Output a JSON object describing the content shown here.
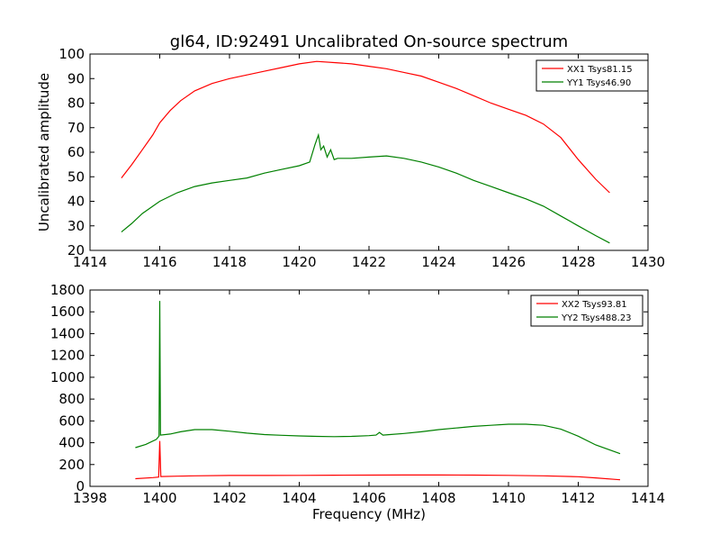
{
  "chart_data": [
    {
      "type": "line",
      "title": "gl64, ID:92491 Uncalibrated On-source spectrum",
      "xlabel": "",
      "ylabel": "Uncalibrated amplitude",
      "xlim": [
        1414,
        1430
      ],
      "ylim": [
        20,
        100
      ],
      "xticks": [
        "1414",
        "1416",
        "1418",
        "1420",
        "1422",
        "1424",
        "1426",
        "1428",
        "1430"
      ],
      "yticks": [
        "20",
        "30",
        "40",
        "50",
        "60",
        "70",
        "80",
        "90",
        "100"
      ],
      "legend_position": "top-right",
      "grid": false,
      "series": [
        {
          "name": "XX1 Tsys81.15",
          "color": "#ff0000",
          "x": [
            1414.9,
            1415.2,
            1415.5,
            1415.8,
            1416.0,
            1416.3,
            1416.6,
            1417.0,
            1417.5,
            1418.0,
            1418.5,
            1419.0,
            1419.5,
            1420.0,
            1420.5,
            1421.0,
            1421.5,
            1422.0,
            1422.5,
            1423.0,
            1423.5,
            1424.0,
            1424.5,
            1425.0,
            1425.5,
            1426.0,
            1426.5,
            1427.0,
            1427.5,
            1428.0,
            1428.5,
            1428.9
          ],
          "y": [
            49.5,
            55,
            61,
            67,
            72,
            77,
            81,
            85,
            88,
            90,
            91.5,
            93,
            94.5,
            96,
            97,
            96.5,
            96,
            95,
            94,
            92.5,
            91,
            88.5,
            86,
            83,
            80,
            77.5,
            75,
            71.5,
            66,
            57,
            49,
            43.5
          ]
        },
        {
          "name": "YY1 Tsys46.90",
          "color": "#008000",
          "x": [
            1414.9,
            1415.2,
            1415.5,
            1416.0,
            1416.5,
            1417.0,
            1417.5,
            1418.0,
            1418.5,
            1419.0,
            1419.5,
            1420.0,
            1420.3,
            1420.45,
            1420.55,
            1420.62,
            1420.7,
            1420.8,
            1420.9,
            1421.0,
            1421.1,
            1421.5,
            1422.0,
            1422.5,
            1423.0,
            1423.5,
            1424.0,
            1424.5,
            1425.0,
            1425.5,
            1426.0,
            1426.5,
            1427.0,
            1427.5,
            1428.0,
            1428.5,
            1428.9
          ],
          "y": [
            27.5,
            31,
            35,
            40,
            43.5,
            46,
            47.5,
            48.5,
            49.5,
            51.5,
            53,
            54.5,
            56,
            63,
            67,
            61,
            62.5,
            58,
            61,
            57,
            57.5,
            57.5,
            58,
            58.5,
            57.5,
            56,
            54,
            51.5,
            48.5,
            46,
            43.5,
            41,
            38,
            34,
            30,
            26,
            23
          ]
        }
      ]
    },
    {
      "type": "line",
      "title": "",
      "xlabel": "Frequency (MHz)",
      "ylabel": "",
      "xlim": [
        1398,
        1414
      ],
      "ylim": [
        0,
        1800
      ],
      "xticks": [
        "1398",
        "1400",
        "1402",
        "1404",
        "1406",
        "1408",
        "1410",
        "1412",
        "1414"
      ],
      "yticks": [
        "0",
        "200",
        "400",
        "600",
        "800",
        "1000",
        "1200",
        "1400",
        "1600",
        "1800"
      ],
      "legend_position": "top-right",
      "grid": false,
      "series": [
        {
          "name": "XX2 Tsys93.81",
          "color": "#ff0000",
          "x": [
            1399.3,
            1399.8,
            1399.97,
            1400.0,
            1400.03,
            1400.5,
            1401.0,
            1402.0,
            1403.0,
            1404.0,
            1405.0,
            1406.0,
            1407.0,
            1408.0,
            1409.0,
            1410.0,
            1411.0,
            1412.0,
            1412.5,
            1413.2
          ],
          "y": [
            70,
            80,
            85,
            415,
            90,
            93,
            97,
            100,
            100,
            101,
            102,
            103,
            104,
            104,
            103,
            101,
            97,
            88,
            78,
            60
          ]
        },
        {
          "name": "YY2 Tsys488.23",
          "color": "#008000",
          "x": [
            1399.3,
            1399.6,
            1399.9,
            1399.98,
            1400.0,
            1400.02,
            1400.3,
            1400.6,
            1401.0,
            1401.5,
            1402.0,
            1402.5,
            1403.0,
            1403.5,
            1404.0,
            1404.5,
            1405.0,
            1405.5,
            1406.0,
            1406.2,
            1406.3,
            1406.4,
            1406.6,
            1407.0,
            1407.5,
            1408.0,
            1408.5,
            1409.0,
            1409.5,
            1410.0,
            1410.5,
            1411.0,
            1411.5,
            1412.0,
            1412.5,
            1413.2
          ],
          "y": [
            355,
            385,
            430,
            460,
            1700,
            470,
            480,
            500,
            520,
            520,
            505,
            488,
            475,
            468,
            462,
            458,
            456,
            458,
            465,
            470,
            495,
            470,
            475,
            485,
            500,
            520,
            535,
            550,
            560,
            570,
            570,
            560,
            525,
            460,
            380,
            300
          ]
        }
      ]
    }
  ]
}
